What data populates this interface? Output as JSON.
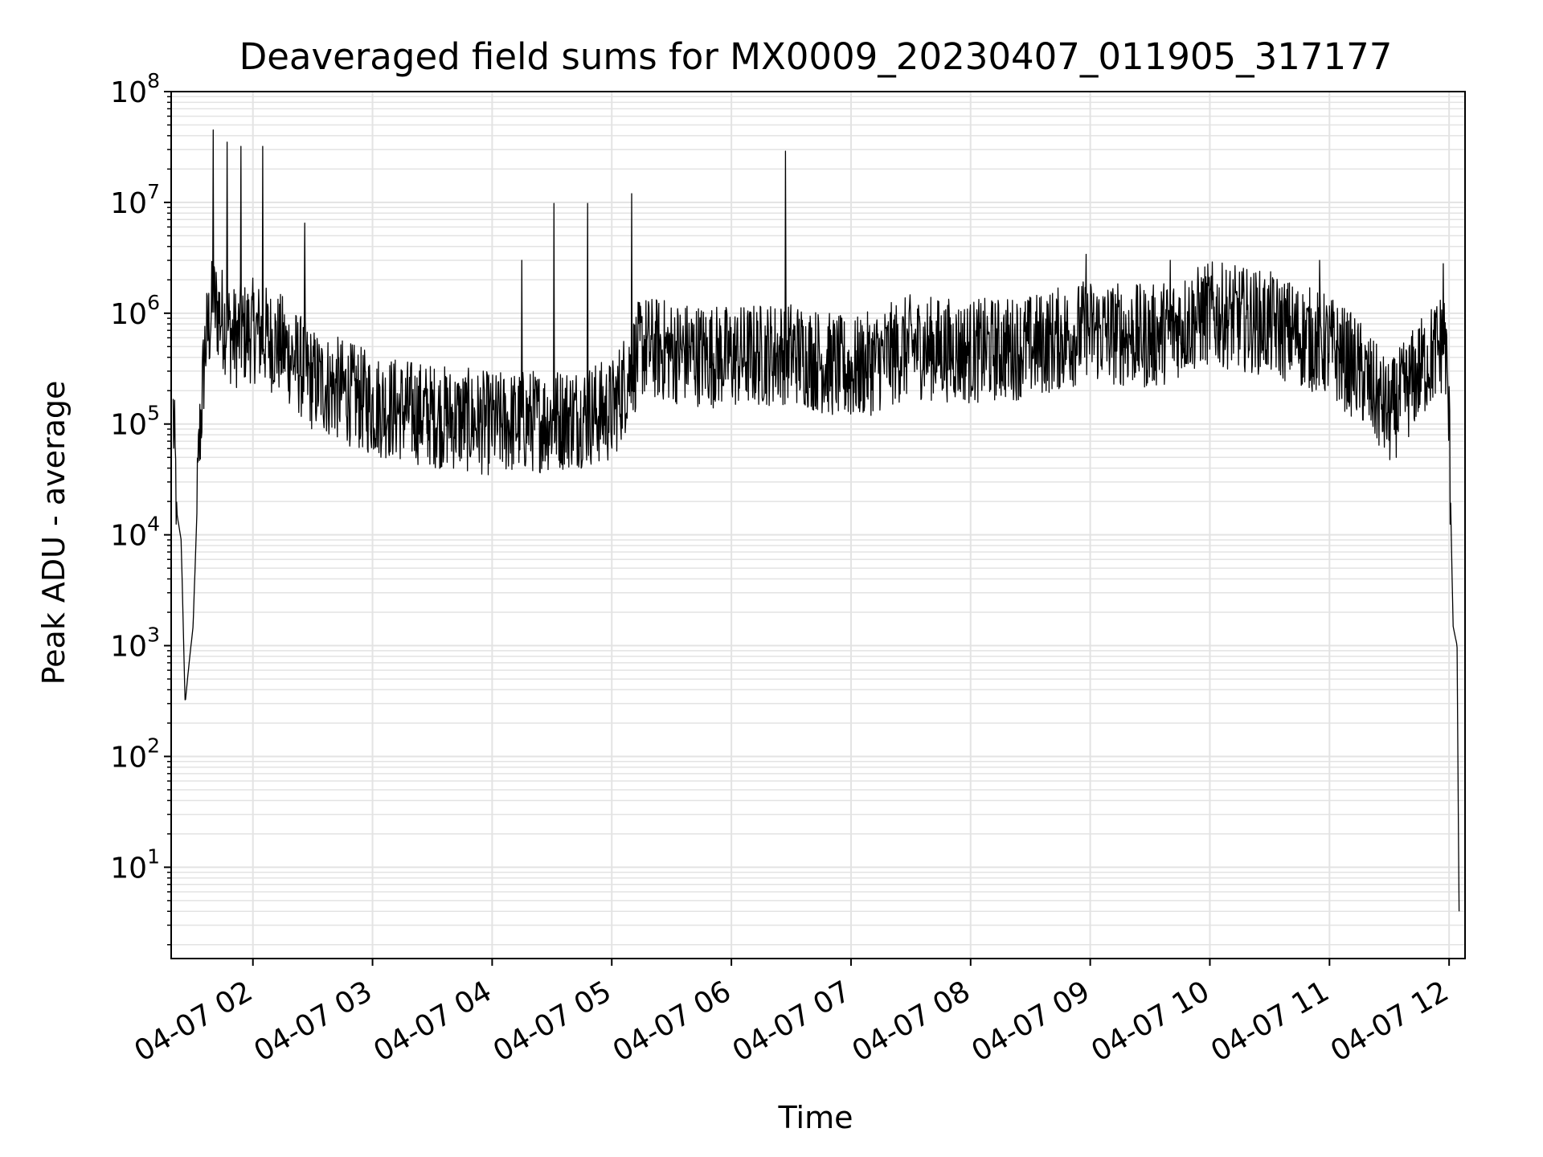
{
  "chart_data": {
    "type": "line",
    "title": "Deaveraged field sums for MX0009_20230407_011905_317177",
    "xlabel": "Time",
    "ylabel": "Peak ADU - average",
    "x_ticks": [
      "04-07 02",
      "04-07 03",
      "04-07 04",
      "04-07 05",
      "04-07 06",
      "04-07 07",
      "04-07 08",
      "04-07 09",
      "04-07 10",
      "04-07 11",
      "04-07 12"
    ],
    "y_scale": "log",
    "y_ticks": [
      {
        "base": "10",
        "exp": "1"
      },
      {
        "base": "10",
        "exp": "2"
      },
      {
        "base": "10",
        "exp": "3"
      },
      {
        "base": "10",
        "exp": "4"
      },
      {
        "base": "10",
        "exp": "5"
      },
      {
        "base": "10",
        "exp": "6"
      },
      {
        "base": "10",
        "exp": "7"
      },
      {
        "base": "10",
        "exp": "8"
      }
    ],
    "xlim": [
      "2023-04-07 01:19",
      "2023-04-07 12:08"
    ],
    "ylim": [
      1.5,
      100000000
    ],
    "grid": true,
    "line_color": "#000000",
    "grid_color": "#e3e3e3",
    "series": [
      {
        "x": [
          "2023-04-07 01:20",
          "2023-04-07 01:22",
          "2023-04-07 01:24",
          "2023-04-07 01:26",
          "2023-04-07 01:28",
          "2023-04-07 01:30",
          "2023-04-07 01:33",
          "2023-04-07 01:36",
          "2023-04-07 01:40",
          "2023-04-07 01:45",
          "2023-04-07 01:50",
          "2023-04-07 02:00",
          "2023-04-07 02:15",
          "2023-04-07 02:30",
          "2023-04-07 02:45",
          "2023-04-07 03:00",
          "2023-04-07 03:30",
          "2023-04-07 04:00",
          "2023-04-07 04:30",
          "2023-04-07 05:00",
          "2023-04-07 05:15",
          "2023-04-07 05:30",
          "2023-04-07 06:00",
          "2023-04-07 06:30",
          "2023-04-07 07:00",
          "2023-04-07 07:30",
          "2023-04-07 08:00",
          "2023-04-07 08:30",
          "2023-04-07 09:00",
          "2023-04-07 09:30",
          "2023-04-07 10:00",
          "2023-04-07 10:30",
          "2023-04-07 11:00",
          "2023-04-07 11:15",
          "2023-04-07 11:30",
          "2023-04-07 11:45",
          "2023-04-07 11:55",
          "2023-04-07 11:58",
          "2023-04-07 12:00",
          "2023-04-07 12:02",
          "2023-04-07 12:04",
          "2023-04-07 12:05"
        ],
        "y": [
          120000,
          15000,
          9000,
          300,
          700,
          1500,
          60000,
          500000,
          1200000,
          900000,
          600000,
          700000,
          500000,
          250000,
          200000,
          150000,
          120000,
          100000,
          110000,
          130000,
          500000,
          450000,
          400000,
          450000,
          300000,
          500000,
          450000,
          500000,
          700000,
          600000,
          1000000,
          800000,
          500000,
          300000,
          120000,
          300000,
          500000,
          600000,
          100000,
          1500,
          1000,
          4
        ]
      }
    ],
    "spikes": [
      {
        "x": "2023-04-07 01:40",
        "y": 45000000
      },
      {
        "x": "2023-04-07 01:47",
        "y": 35000000
      },
      {
        "x": "2023-04-07 01:54",
        "y": 32000000
      },
      {
        "x": "2023-04-07 02:05",
        "y": 32000000
      },
      {
        "x": "2023-04-07 02:26",
        "y": 6500000
      },
      {
        "x": "2023-04-07 04:15",
        "y": 3000000
      },
      {
        "x": "2023-04-07 04:31",
        "y": 9800000
      },
      {
        "x": "2023-04-07 04:48",
        "y": 9800000
      },
      {
        "x": "2023-04-07 05:10",
        "y": 12000000
      },
      {
        "x": "2023-04-07 06:27",
        "y": 29000000
      },
      {
        "x": "2023-04-07 08:58",
        "y": 3400000
      },
      {
        "x": "2023-04-07 09:40",
        "y": 3000000
      },
      {
        "x": "2023-04-07 10:55",
        "y": 3000000
      },
      {
        "x": "2023-04-07 11:57",
        "y": 2800000
      }
    ]
  }
}
